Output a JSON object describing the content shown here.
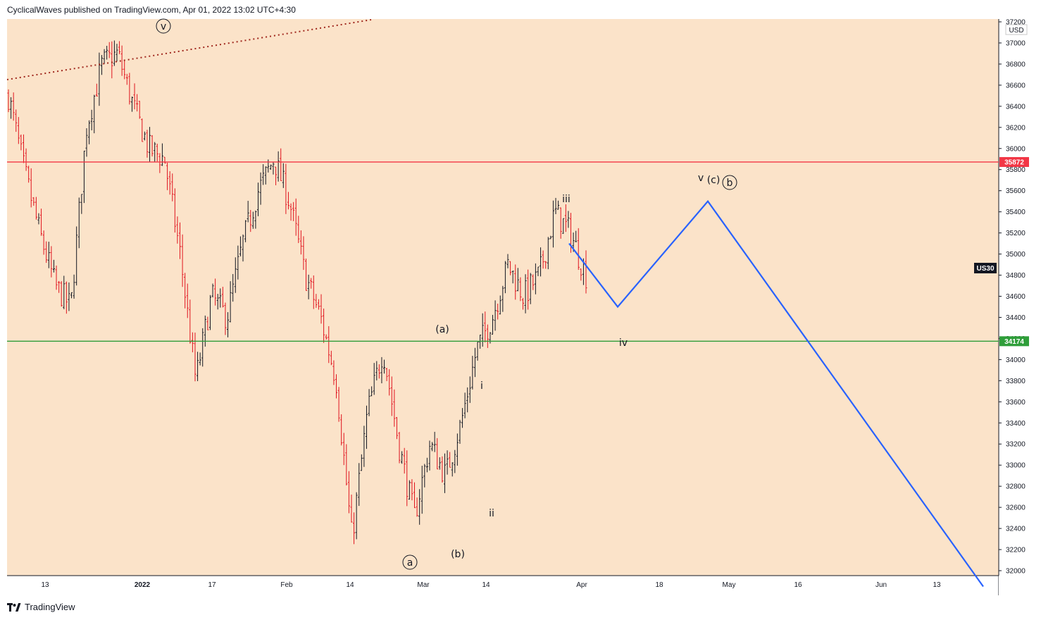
{
  "header": {
    "text": "CyclicalWaves published on TradingView.com, Apr 01, 2022 13:02 UTC+4:30"
  },
  "footer": {
    "brand": "TradingView",
    "logo_icon": "tradingview-logo-icon"
  },
  "colors": {
    "background": "#fbe3c9",
    "up_candle": "#131722",
    "down_candle": "#e0141e",
    "resistance_line": "#f23645",
    "support_line": "#2f9e3a",
    "projection_line": "#2962ff",
    "trendline": "#a0281e"
  },
  "chart_data": {
    "type": "candlestick",
    "symbol_label": "US30",
    "currency": "USD",
    "y_ticks": [
      32000,
      32200,
      32400,
      32600,
      32800,
      33000,
      33200,
      33400,
      33600,
      33800,
      34000,
      34200,
      34400,
      34600,
      34800,
      35000,
      35200,
      35400,
      35600,
      35800,
      36000,
      36200,
      36400,
      36600,
      36800,
      37000,
      37200
    ],
    "x_ticks": [
      {
        "label": "13",
        "bold": false
      },
      {
        "label": "2022",
        "bold": true
      },
      {
        "label": "17",
        "bold": false
      },
      {
        "label": "Feb",
        "bold": false
      },
      {
        "label": "14",
        "bold": false
      },
      {
        "label": "Mar",
        "bold": false
      },
      {
        "label": "14",
        "bold": false
      },
      {
        "label": "Apr",
        "bold": false
      },
      {
        "label": "18",
        "bold": false
      },
      {
        "label": "May",
        "bold": false
      },
      {
        "label": "16",
        "bold": false
      },
      {
        "label": "Jun",
        "bold": false
      },
      {
        "label": "13",
        "bold": false
      }
    ],
    "price_lines": [
      {
        "name": "resistance",
        "value": 35872,
        "label": "35872"
      },
      {
        "name": "support",
        "value": 34174,
        "label": "34174"
      }
    ],
    "wave_labels": [
      {
        "text": "v",
        "circled": true,
        "price": 37000
      },
      {
        "text": "(a)",
        "circled": false,
        "price": 34250
      },
      {
        "text": "a",
        "circled": true,
        "price": 32150
      },
      {
        "text": "(b)",
        "circled": false,
        "price": 32300
      },
      {
        "text": "i",
        "circled": false,
        "price": 33700
      },
      {
        "text": "ii",
        "circled": false,
        "price": 32600
      },
      {
        "text": "iii",
        "circled": false,
        "price": 35450
      },
      {
        "text": "iv",
        "circled": false,
        "price": 34200
      },
      {
        "text": "v",
        "circled": false,
        "price": 35600
      },
      {
        "text": "(c)",
        "circled": false,
        "price": 35600
      },
      {
        "text": "b",
        "circled": true,
        "price": 35600
      }
    ],
    "price_path": [
      36500,
      35800,
      35200,
      34700,
      34500,
      36200,
      36800,
      36900,
      36400,
      36000,
      35900,
      35000,
      33800,
      34600,
      34400,
      35100,
      35600,
      35900,
      35500,
      34800,
      34400,
      33800,
      32300,
      33500,
      34100,
      33200,
      32500,
      33200,
      32900,
      33400,
      34100,
      34400,
      34900,
      34600,
      34800,
      35400,
      35200,
      34800
    ],
    "projection": [
      35100,
      34500,
      35500,
      31850
    ],
    "ylim": [
      31950,
      37250
    ]
  }
}
